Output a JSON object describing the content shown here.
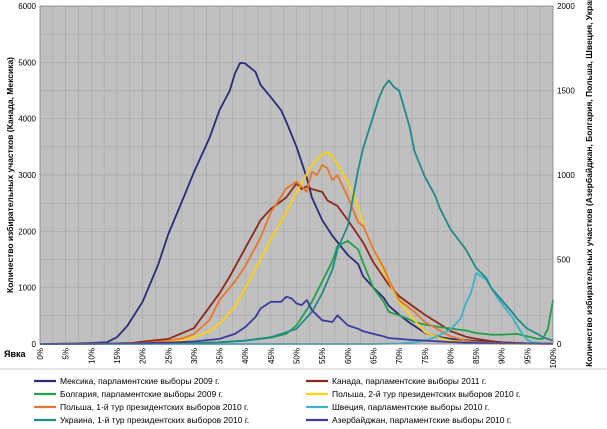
{
  "chart_data": {
    "type": "line",
    "xlabel": "Явка",
    "ylabel_left": "Количество избирательных участков (Канада, Мексика)",
    "ylabel_right": "Количество избирательных участков (Азербайджан, Болгария, Польша, Швеция, Украина)",
    "ylim_left": [
      0,
      6000
    ],
    "ylim_right": [
      0,
      2000
    ],
    "yticks_left": [
      "0",
      "1000",
      "2000",
      "3000",
      "4000",
      "5000",
      "6000"
    ],
    "yticks_right": [
      "0",
      "500",
      "1000",
      "1500",
      "2000"
    ],
    "x_ticks": [
      "0%",
      "5%",
      "10%",
      "15%",
      "20%",
      "25%",
      "30%",
      "35%",
      "40%",
      "45%",
      "50%",
      "55%",
      "60%",
      "65%",
      "70%",
      "75%",
      "80%",
      "85%",
      "90%",
      "95%",
      "100%"
    ],
    "grid": true,
    "legend_position": "bottom",
    "series": [
      {
        "name": "Мексика, парламентские выборы 2009 г.",
        "color": "#2b2b7a",
        "axis": "left",
        "x": [
          0,
          5,
          10,
          13,
          15,
          17,
          20,
          23,
          25,
          28,
          30,
          33,
          35,
          37,
          38,
          39,
          40,
          42,
          43,
          45,
          47,
          48,
          50,
          52,
          53,
          55,
          57,
          60,
          62,
          63,
          65,
          67,
          68,
          70,
          72,
          75,
          78,
          80,
          83,
          85,
          88,
          90,
          92,
          95,
          98,
          100
        ],
        "y": [
          0,
          5,
          20,
          30,
          120,
          320,
          750,
          1400,
          1950,
          2600,
          3050,
          3650,
          4150,
          4500,
          4800,
          4990,
          4980,
          4830,
          4600,
          4380,
          4150,
          3950,
          3500,
          2950,
          2600,
          2200,
          1920,
          1580,
          1420,
          1200,
          1000,
          820,
          680,
          520,
          380,
          200,
          120,
          90,
          70,
          50,
          40,
          30,
          20,
          10,
          5,
          5
        ]
      },
      {
        "name": "Канада, парламентские выборы 2011 г.",
        "color": "#8b2a1a",
        "axis": "left",
        "x": [
          0,
          10,
          15,
          18,
          20,
          25,
          30,
          35,
          37,
          40,
          43,
          45,
          48,
          50,
          51,
          52,
          53,
          55,
          56,
          58,
          60,
          63,
          65,
          68,
          70,
          73,
          75,
          78,
          80,
          83,
          85,
          88,
          90,
          95,
          100
        ],
        "y": [
          0,
          5,
          10,
          20,
          40,
          90,
          280,
          900,
          1200,
          1700,
          2200,
          2400,
          2600,
          2850,
          2750,
          2800,
          2750,
          2700,
          2550,
          2450,
          2200,
          1800,
          1450,
          1050,
          850,
          650,
          520,
          350,
          230,
          130,
          90,
          50,
          30,
          10,
          5
        ]
      },
      {
        "name": "Болгария, парламентские выборы 2009 г.",
        "color": "#22a04a",
        "axis": "right",
        "x": [
          0,
          10,
          20,
          30,
          35,
          40,
          45,
          48,
          50,
          53,
          55,
          57,
          58,
          60,
          62,
          63,
          65,
          67,
          68,
          70,
          72,
          73,
          75,
          78,
          80,
          83,
          85,
          88,
          90,
          93,
          95,
          97,
          98,
          99,
          100
        ],
        "y": [
          0,
          2,
          3,
          6,
          10,
          20,
          38,
          60,
          110,
          250,
          370,
          490,
          580,
          610,
          560,
          480,
          330,
          250,
          190,
          170,
          145,
          130,
          115,
          100,
          92,
          80,
          65,
          55,
          55,
          60,
          45,
          30,
          30,
          90,
          260
        ]
      },
      {
        "name": "Польша, 2-й тур президентских выборов 2010 г.",
        "color": "#ffd200",
        "axis": "right",
        "x": [
          0,
          10,
          20,
          25,
          28,
          30,
          33,
          35,
          38,
          40,
          43,
          45,
          48,
          50,
          53,
          55,
          56,
          57,
          58,
          60,
          62,
          63,
          65,
          68,
          70,
          73,
          75,
          78,
          80,
          83,
          85,
          90,
          95,
          100
        ],
        "y": [
          0,
          2,
          5,
          15,
          25,
          40,
          75,
          120,
          220,
          330,
          500,
          620,
          780,
          900,
          1060,
          1120,
          1135,
          1110,
          1060,
          960,
          810,
          700,
          560,
          370,
          250,
          140,
          70,
          35,
          20,
          10,
          5,
          2,
          1,
          1
        ]
      },
      {
        "name": "Польша, 1-й тур президентских выборов 2010 г.",
        "color": "#e8762b",
        "axis": "right",
        "x": [
          0,
          10,
          20,
          25,
          28,
          30,
          33,
          35,
          38,
          40,
          43,
          45,
          48,
          50,
          52,
          53,
          54,
          55,
          56,
          57,
          58,
          60,
          62,
          63,
          65,
          67,
          68,
          70,
          73,
          75,
          78,
          80,
          83,
          85,
          90,
          95,
          100
        ],
        "y": [
          0,
          2,
          5,
          20,
          35,
          60,
          140,
          260,
          370,
          460,
          630,
          780,
          920,
          960,
          900,
          1020,
          1000,
          1060,
          1040,
          970,
          1000,
          870,
          720,
          700,
          560,
          450,
          380,
          260,
          190,
          130,
          80,
          45,
          20,
          10,
          5,
          2,
          1
        ]
      },
      {
        "name": "Швеция, парламентские выборы 2010 г.",
        "color": "#3ab3c6",
        "axis": "right",
        "x": [
          0,
          60,
          65,
          70,
          73,
          75,
          77,
          78,
          80,
          82,
          83,
          84,
          85,
          86,
          87,
          88,
          89,
          90,
          91,
          92,
          93,
          94,
          95,
          96,
          98,
          100
        ],
        "y": [
          0,
          0,
          0,
          3,
          10,
          20,
          40,
          55,
          85,
          150,
          240,
          300,
          420,
          400,
          380,
          330,
          280,
          240,
          200,
          160,
          110,
          60,
          25,
          10,
          3,
          1
        ]
      },
      {
        "name": "Украина, 1-й тур президентских выборов 2010 г.",
        "color": "#1f8a8a",
        "axis": "right",
        "x": [
          0,
          20,
          30,
          35,
          40,
          45,
          50,
          53,
          55,
          57,
          58,
          60,
          62,
          63,
          65,
          66,
          67,
          68,
          69,
          70,
          72,
          73,
          75,
          77,
          78,
          80,
          83,
          85,
          87,
          88,
          90,
          92,
          93,
          95,
          97,
          98,
          100
        ],
        "y": [
          0,
          2,
          5,
          10,
          20,
          40,
          90,
          190,
          300,
          440,
          560,
          700,
          1030,
          1160,
          1350,
          1450,
          1520,
          1560,
          1520,
          1500,
          1290,
          1140,
          990,
          880,
          800,
          680,
          560,
          450,
          390,
          330,
          260,
          190,
          150,
          90,
          60,
          40,
          20
        ]
      },
      {
        "name": "Азербайджан, парламентские выборы 2010 г.",
        "color": "#3c3ca0",
        "axis": "right",
        "x": [
          0,
          10,
          20,
          25,
          30,
          35,
          38,
          40,
          42,
          43,
          45,
          47,
          48,
          49,
          50,
          51,
          52,
          53,
          55,
          57,
          58,
          60,
          62,
          63,
          65,
          67,
          68,
          70,
          72,
          75,
          78,
          80,
          83,
          85,
          88,
          90,
          93,
          95,
          98,
          100
        ],
        "y": [
          0,
          2,
          5,
          8,
          15,
          30,
          60,
          100,
          160,
          210,
          250,
          250,
          280,
          270,
          240,
          230,
          260,
          200,
          140,
          130,
          170,
          110,
          90,
          75,
          60,
          45,
          35,
          30,
          25,
          20,
          15,
          12,
          8,
          6,
          5,
          4,
          3,
          3,
          2,
          2
        ]
      }
    ]
  }
}
